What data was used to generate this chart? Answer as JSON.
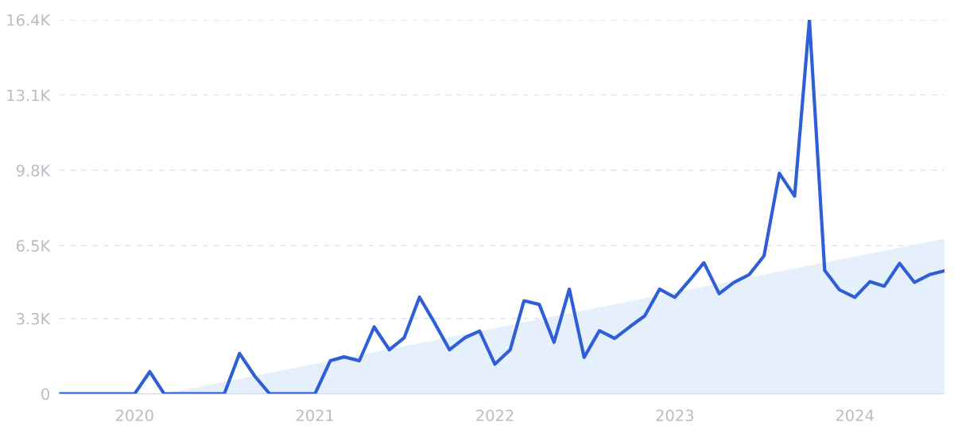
{
  "chart_data": {
    "type": "line",
    "x": [
      "2019-08",
      "2019-09",
      "2019-10",
      "2019-11",
      "2019-12",
      "2020-01",
      "2020-02",
      "2020-03",
      "2020-04",
      "2020-05",
      "2020-06",
      "2020-07",
      "2020-08",
      "2020-09",
      "2020-10",
      "2020-11",
      "2020-12",
      "2021-01",
      "2021-02",
      "2021-03",
      "2021-04",
      "2021-05",
      "2021-06",
      "2021-07",
      "2021-08",
      "2021-09",
      "2021-10",
      "2021-11",
      "2021-12",
      "2022-01",
      "2022-02",
      "2022-03",
      "2022-04",
      "2022-05",
      "2022-06",
      "2022-07",
      "2022-08",
      "2022-09",
      "2022-10",
      "2022-11",
      "2022-12",
      "2023-01",
      "2023-02",
      "2023-03",
      "2023-04",
      "2023-05",
      "2023-06",
      "2023-07",
      "2023-08",
      "2023-09",
      "2023-10",
      "2023-11",
      "2023-12",
      "2024-01",
      "2024-02",
      "2024-03",
      "2024-04",
      "2024-05",
      "2024-06",
      "2024-07"
    ],
    "series": [
      {
        "type": "area",
        "color": "#e6effc",
        "x": [
          "2020-03",
          "2024-07"
        ],
        "values": [
          0,
          6800
        ]
      },
      {
        "color": "#2f5fd6",
        "values": [
          0,
          0,
          0,
          0,
          0,
          0,
          970,
          0,
          0,
          0,
          0,
          0,
          1770,
          770,
          0,
          0,
          0,
          0,
          1450,
          1620,
          1450,
          2930,
          1930,
          2460,
          4240,
          3100,
          1930,
          2460,
          2750,
          1300,
          1930,
          4080,
          3920,
          2260,
          4590,
          1600,
          2770,
          2430,
          2930,
          3420,
          4590,
          4230,
          5010,
          5750,
          4390,
          4890,
          5230,
          6050,
          9670,
          8670,
          16400,
          5410,
          4560,
          4230,
          4920,
          4720,
          5720,
          4890,
          5230,
          5390
        ]
      }
    ],
    "xlim": [
      "2019-08",
      "2024-07"
    ],
    "xticks": [
      {
        "value": "2020",
        "label": "2020"
      },
      {
        "value": "2021",
        "label": "2021"
      },
      {
        "value": "2022",
        "label": "2022"
      },
      {
        "value": "2023",
        "label": "2023"
      },
      {
        "value": "2024",
        "label": "2024"
      }
    ],
    "ylim": [
      0,
      16400
    ],
    "yticks": [
      0,
      {
        "value": 3300,
        "label": "3.3K"
      },
      {
        "value": 6500,
        "label": "6.5K"
      },
      {
        "value": 9800,
        "label": "9.8K"
      },
      {
        "value": 13100,
        "label": "13.1K"
      },
      {
        "value": 16400,
        "label": "16.4K"
      }
    ],
    "grid": "y",
    "line_style": "solid",
    "marker": "none",
    "legend": false
  }
}
